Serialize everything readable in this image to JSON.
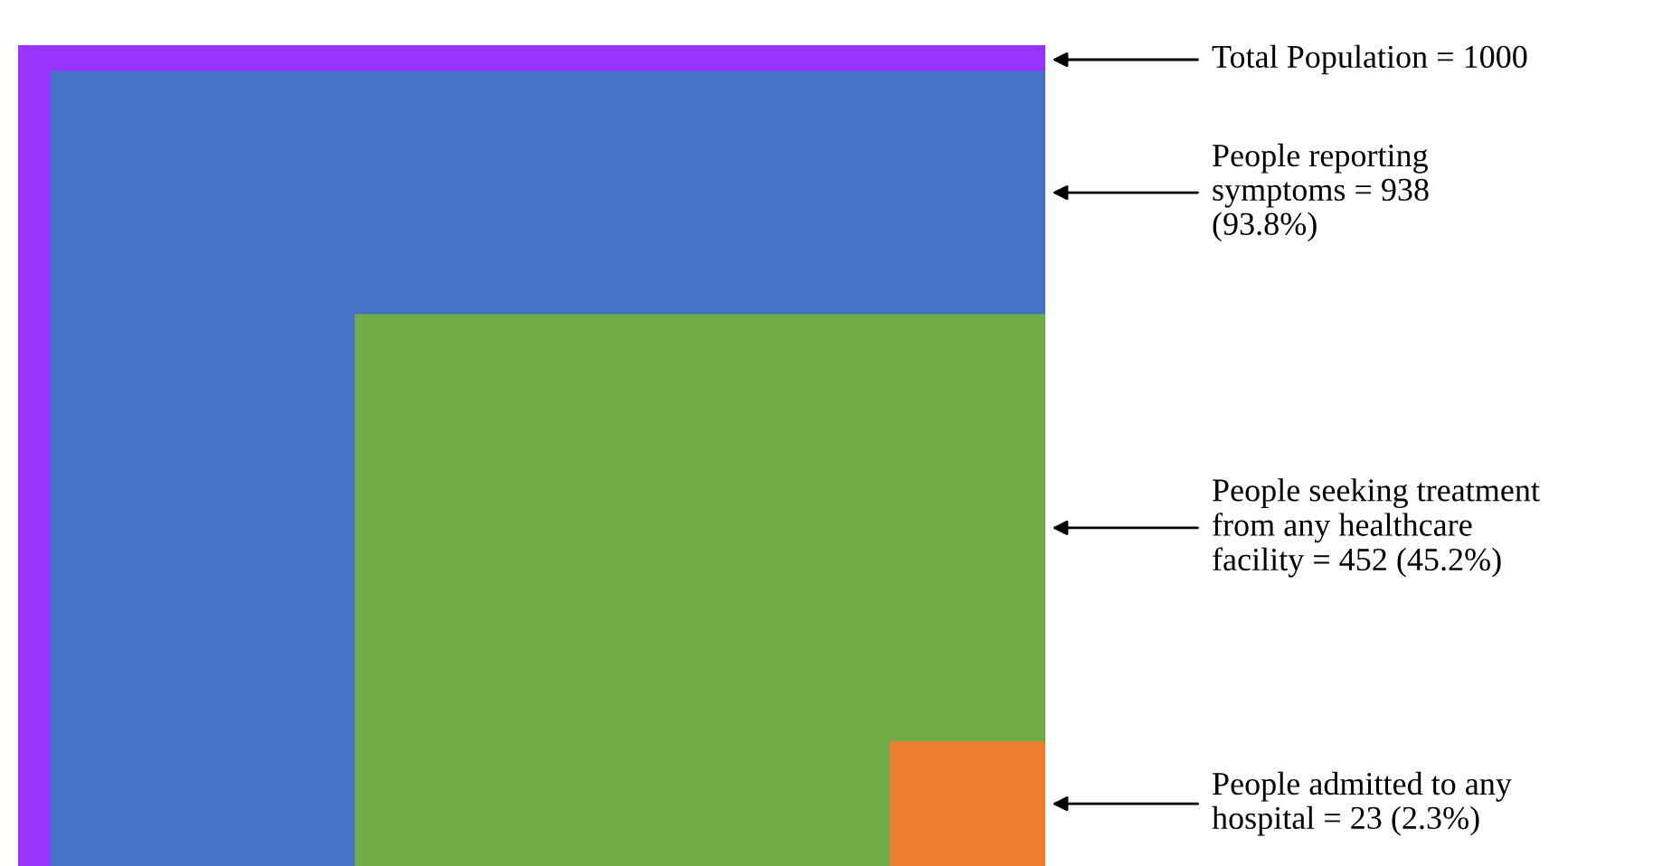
{
  "chart_data": {
    "type": "other",
    "categories": [
      null,
      null,
      null,
      null
    ],
    "values": [
      1000,
      938,
      452,
      23
    ],
    "colors": [
      "#9933ff",
      "#4472c4",
      "#70ad47",
      "#ed7d31"
    ],
    "value_labels": [
      "Total Population = 1000",
      "People reporting\nsymptoms = 938\n(93.8%)",
      "People seeking treatment\nfrom any healthcare\nfacility = 452 (45.2%)",
      "People admitted to any\nhospital = 23 (2.3%)"
    ]
  }
}
